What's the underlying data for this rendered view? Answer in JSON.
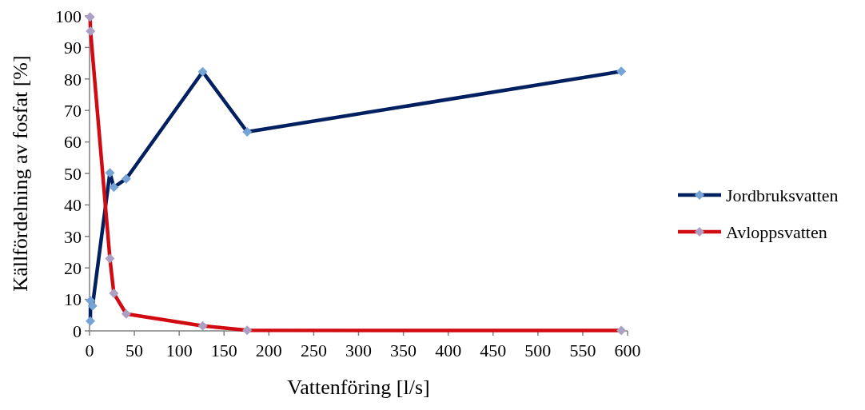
{
  "chart_data": {
    "type": "line",
    "xlabel": "Vattenföring [l/s]",
    "ylabel": "Källfördelning av fosfat [%]",
    "xlim": [
      0,
      600
    ],
    "xticks": [
      0,
      50,
      100,
      150,
      200,
      250,
      300,
      350,
      400,
      450,
      500,
      550,
      600
    ],
    "ylim": [
      0,
      100
    ],
    "yticks": [
      0,
      10,
      20,
      30,
      40,
      50,
      60,
      70,
      80,
      90,
      100
    ],
    "grid": false,
    "legend": "right",
    "marker": "diamond",
    "line_style": "solid",
    "series": [
      {
        "name": "Jordbruksvatten",
        "color": "#002060",
        "x": [
          0.9,
          1.1,
          3.3,
          22.7,
          27.1,
          40.9,
          126.2,
          175.8,
          593
        ],
        "values": [
          3.1,
          9.6,
          7.9,
          50.2,
          45.6,
          48.3,
          82.3,
          63.2,
          82.4
        ]
      },
      {
        "name": "Avloppsvatten",
        "color": "#d20a11",
        "x": [
          0.6,
          1.1,
          22.7,
          27.1,
          40.9,
          126.2,
          175.8,
          593
        ],
        "values": [
          99.7,
          95.2,
          23,
          11.9,
          5.4,
          1.6,
          0.2,
          0.1
        ]
      }
    ]
  }
}
